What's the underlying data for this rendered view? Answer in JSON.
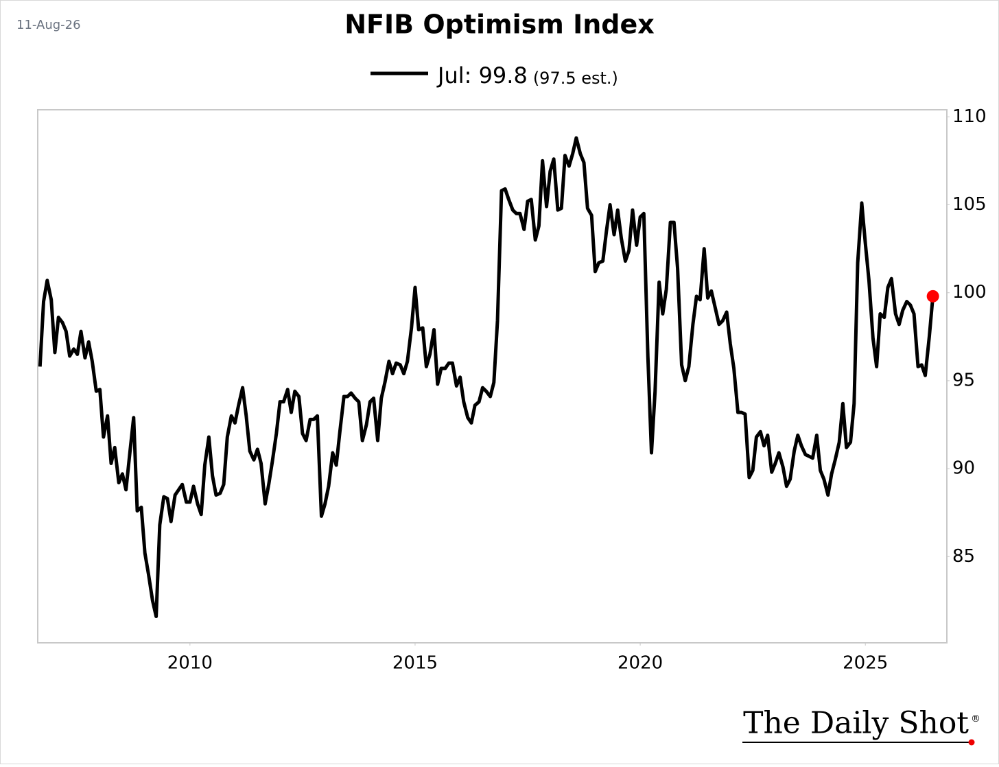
{
  "chart_data": {
    "type": "line",
    "title": "NFIB Optimism Index",
    "date_label": "11-Aug-26",
    "annotation": "(97.5 est.)",
    "source": "The Daily Shot",
    "source_mark": "®",
    "x": [
      2006.67,
      2006.75,
      2006.83,
      2006.92,
      2007.0,
      2007.08,
      2007.17,
      2007.25,
      2007.33,
      2007.42,
      2007.5,
      2007.58,
      2007.67,
      2007.75,
      2007.83,
      2007.92,
      2008.0,
      2008.08,
      2008.17,
      2008.25,
      2008.33,
      2008.42,
      2008.5,
      2008.58,
      2008.67,
      2008.75,
      2008.83,
      2008.92,
      2009.0,
      2009.08,
      2009.17,
      2009.25,
      2009.33,
      2009.42,
      2009.5,
      2009.58,
      2009.67,
      2009.75,
      2009.83,
      2009.92,
      2010.0,
      2010.08,
      2010.17,
      2010.25,
      2010.33,
      2010.42,
      2010.5,
      2010.58,
      2010.67,
      2010.75,
      2010.83,
      2010.92,
      2011.0,
      2011.08,
      2011.17,
      2011.25,
      2011.33,
      2011.42,
      2011.5,
      2011.58,
      2011.67,
      2011.75,
      2011.83,
      2011.92,
      2012.0,
      2012.08,
      2012.17,
      2012.25,
      2012.33,
      2012.42,
      2012.5,
      2012.58,
      2012.67,
      2012.75,
      2012.83,
      2012.92,
      2013.0,
      2013.08,
      2013.17,
      2013.25,
      2013.33,
      2013.42,
      2013.5,
      2013.58,
      2013.67,
      2013.75,
      2013.83,
      2013.92,
      2014.0,
      2014.08,
      2014.17,
      2014.25,
      2014.33,
      2014.42,
      2014.5,
      2014.58,
      2014.67,
      2014.75,
      2014.83,
      2014.92,
      2015.0,
      2015.08,
      2015.17,
      2015.25,
      2015.33,
      2015.42,
      2015.5,
      2015.58,
      2015.67,
      2015.75,
      2015.83,
      2015.92,
      2016.0,
      2016.08,
      2016.17,
      2016.25,
      2016.33,
      2016.42,
      2016.5,
      2016.58,
      2016.67,
      2016.75,
      2016.83,
      2016.92,
      2017.0,
      2017.08,
      2017.17,
      2017.25,
      2017.33,
      2017.42,
      2017.5,
      2017.58,
      2017.67,
      2017.75,
      2017.83,
      2017.92,
      2018.0,
      2018.08,
      2018.17,
      2018.25,
      2018.33,
      2018.42,
      2018.5,
      2018.58,
      2018.67,
      2018.75,
      2018.83,
      2018.92,
      2019.0,
      2019.08,
      2019.17,
      2019.25,
      2019.33,
      2019.42,
      2019.5,
      2019.58,
      2019.67,
      2019.75,
      2019.83,
      2019.92,
      2020.0,
      2020.08,
      2020.17,
      2020.25,
      2020.33,
      2020.42,
      2020.5,
      2020.58,
      2020.67,
      2020.75,
      2020.83,
      2020.92,
      2021.0,
      2021.08,
      2021.17,
      2021.25,
      2021.33,
      2021.42,
      2021.5,
      2021.58,
      2021.67,
      2021.75,
      2021.83,
      2021.92,
      2022.0,
      2022.08,
      2022.17,
      2022.25,
      2022.33,
      2022.42,
      2022.5,
      2022.58,
      2022.67,
      2022.75,
      2022.83,
      2022.92,
      2023.0,
      2023.08,
      2023.17,
      2023.25,
      2023.33,
      2023.42,
      2023.5,
      2023.58,
      2023.67,
      2023.75,
      2023.83,
      2023.92,
      2024.0,
      2024.08,
      2024.17,
      2024.25,
      2024.33,
      2024.42,
      2024.5,
      2024.58,
      2024.67,
      2024.75,
      2024.83,
      2024.92,
      2025.0,
      2025.08,
      2025.17,
      2025.25,
      2025.33,
      2025.42,
      2025.5,
      2025.58,
      2025.67,
      2025.75,
      2025.83,
      2025.92,
      2026.0,
      2026.08,
      2026.17,
      2026.25,
      2026.33,
      2026.42,
      2026.5
    ],
    "series": [
      {
        "name": "Jul: 99.8",
        "color": "#000000",
        "marker_color": "#ff0000",
        "values": [
          95.8,
          99.5,
          100.7,
          99.6,
          96.6,
          98.6,
          98.3,
          97.8,
          96.4,
          96.8,
          96.5,
          97.8,
          96.3,
          97.2,
          96.1,
          94.4,
          94.5,
          91.8,
          93.0,
          90.3,
          91.2,
          89.2,
          89.7,
          88.8,
          91.0,
          92.9,
          87.6,
          87.8,
          85.2,
          84.0,
          82.5,
          81.6,
          86.8,
          88.4,
          88.3,
          87.0,
          88.5,
          88.8,
          89.1,
          88.1,
          88.1,
          89.0,
          88.0,
          87.4,
          90.2,
          91.8,
          89.6,
          88.5,
          88.6,
          89.1,
          91.8,
          93.0,
          92.6,
          93.6,
          94.6,
          93.0,
          91.0,
          90.5,
          91.1,
          90.3,
          88.0,
          89.1,
          90.4,
          92.0,
          93.8,
          93.8,
          94.5,
          93.2,
          94.4,
          94.1,
          92.0,
          91.6,
          92.8,
          92.8,
          93.0,
          87.3,
          88.0,
          89.0,
          90.9,
          90.2,
          92.1,
          94.1,
          94.1,
          94.3,
          94.0,
          93.8,
          91.6,
          92.5,
          93.8,
          94.0,
          91.6,
          94.0,
          94.9,
          96.1,
          95.4,
          96.0,
          95.9,
          95.4,
          96.1,
          98.0,
          100.3,
          97.9,
          98.0,
          95.8,
          96.5,
          97.9,
          94.8,
          95.7,
          95.7,
          96.0,
          96.0,
          94.7,
          95.2,
          93.8,
          92.9,
          92.6,
          93.6,
          93.8,
          94.6,
          94.4,
          94.1,
          94.9,
          98.4,
          105.8,
          105.9,
          105.3,
          104.7,
          104.5,
          104.5,
          103.6,
          105.2,
          105.3,
          103.0,
          103.8,
          107.5,
          104.9,
          106.9,
          107.6,
          104.7,
          104.8,
          107.8,
          107.2,
          107.9,
          108.8,
          107.9,
          107.4,
          104.8,
          104.4,
          101.2,
          101.7,
          101.8,
          103.5,
          105.0,
          103.3,
          104.7,
          103.1,
          101.8,
          102.4,
          104.7,
          102.7,
          104.3,
          104.5,
          96.4,
          90.9,
          94.4,
          100.6,
          98.8,
          100.2,
          104.0,
          104.0,
          101.4,
          95.9,
          95.0,
          95.8,
          98.2,
          99.8,
          99.6,
          102.5,
          99.7,
          100.1,
          99.1,
          98.2,
          98.4,
          98.9,
          97.1,
          95.7,
          93.2,
          93.2,
          93.1,
          89.5,
          89.9,
          91.8,
          92.1,
          91.3,
          91.9,
          89.8,
          90.3,
          90.9,
          90.1,
          89.0,
          89.4,
          91.0,
          91.9,
          91.3,
          90.8,
          90.7,
          90.6,
          91.9,
          89.9,
          89.4,
          88.5,
          89.7,
          90.5,
          91.5,
          93.7,
          91.2,
          91.5,
          93.7,
          101.7,
          105.1,
          102.8,
          100.7,
          97.4,
          95.8,
          98.8,
          98.6,
          100.3,
          100.8,
          98.8,
          98.2,
          99.0,
          99.5,
          99.3,
          98.8,
          95.8,
          95.9,
          95.3,
          97.5,
          99.8
        ]
      }
    ],
    "xlim": [
      2006.62,
      2026.81
    ],
    "xticks": [
      2010,
      2015,
      2020,
      2025
    ],
    "ylim": [
      80.1,
      110.4
    ],
    "yticks": [
      85,
      90,
      95,
      100,
      105,
      110
    ],
    "grid": false
  }
}
